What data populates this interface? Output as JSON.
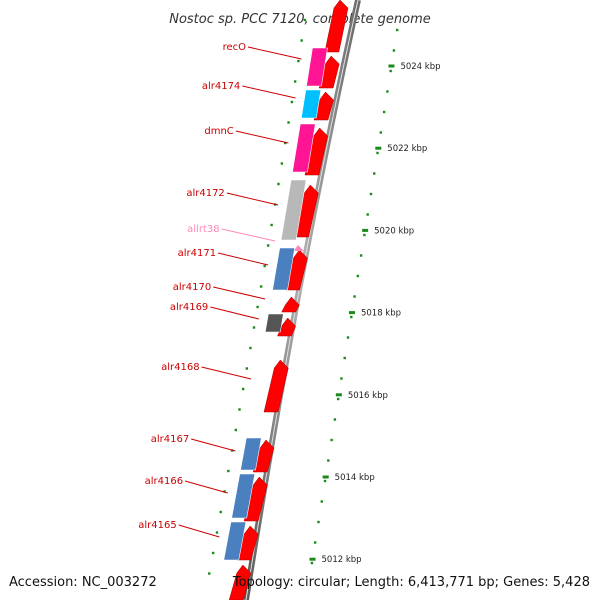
{
  "title": "Nostoc sp. PCC 7120, complete genome",
  "footer": {
    "accession": "Accession: NC_003272",
    "summary": "Topology: circular; Length: 6,413,771 bp; Genes: 5,428"
  },
  "colors": {
    "forward_cds": "#ff0000",
    "label_cds": "#cc0000",
    "label_rna": "#ff88bb",
    "tick": "#1a8a1a",
    "backbone": "#808080"
  },
  "scale_ticks": [
    {
      "label": "5024 kbp",
      "kbp": 5024
    },
    {
      "label": "5022 kbp",
      "kbp": 5022
    },
    {
      "label": "5020 kbp",
      "kbp": 5020
    },
    {
      "label": "5018 kbp",
      "kbp": 5018
    },
    {
      "label": "5016 kbp",
      "kbp": 5016
    },
    {
      "label": "5014 kbp",
      "kbp": 5014
    },
    {
      "label": "5012 kbp",
      "kbp": 5012
    }
  ],
  "genes": [
    {
      "name": "recO",
      "kind": "cds",
      "cog_color": "#ff1493"
    },
    {
      "name": "alr4174",
      "kind": "cds",
      "cog_color": "#00bfff"
    },
    {
      "name": "dmnC",
      "kind": "cds",
      "cog_color": "#ff1493"
    },
    {
      "name": "alr4172",
      "kind": "cds",
      "cog_color": "#b8b8b8"
    },
    {
      "name": "allrt38",
      "kind": "rna",
      "cog_color": ""
    },
    {
      "name": "alr4171",
      "kind": "cds",
      "cog_color": "#4a7fc0"
    },
    {
      "name": "alr4170",
      "kind": "cds",
      "cog_color": ""
    },
    {
      "name": "alr4169",
      "kind": "cds",
      "cog_color": "#555555"
    },
    {
      "name": "alr4168",
      "kind": "cds",
      "cog_color": ""
    },
    {
      "name": "alr4167",
      "kind": "cds",
      "cog_color": "#4a7fc0"
    },
    {
      "name": "alr4166",
      "kind": "cds",
      "cog_color": "#4a7fc0"
    },
    {
      "name": "alr4165",
      "kind": "cds",
      "cog_color": "#4a7fc0"
    }
  ]
}
